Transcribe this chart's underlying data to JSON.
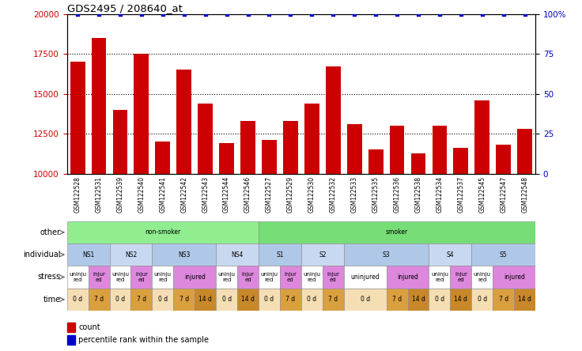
{
  "title": "GDS2495 / 208640_at",
  "samples": [
    "GSM122528",
    "GSM122531",
    "GSM122539",
    "GSM122540",
    "GSM122541",
    "GSM122542",
    "GSM122543",
    "GSM122544",
    "GSM122546",
    "GSM122527",
    "GSM122529",
    "GSM122530",
    "GSM122532",
    "GSM122533",
    "GSM122535",
    "GSM122536",
    "GSM122538",
    "GSM122534",
    "GSM122537",
    "GSM122545",
    "GSM122547",
    "GSM122548"
  ],
  "counts": [
    17000,
    18500,
    14000,
    17500,
    12000,
    16500,
    14400,
    11900,
    13300,
    12100,
    13300,
    14400,
    16700,
    13100,
    11500,
    13000,
    11300,
    13000,
    11600,
    14600,
    11800,
    12800
  ],
  "percentile": [
    100,
    100,
    100,
    100,
    100,
    100,
    100,
    100,
    100,
    100,
    100,
    100,
    100,
    100,
    100,
    100,
    100,
    100,
    100,
    100,
    100,
    100
  ],
  "ylim_left": [
    10000,
    20000
  ],
  "ylim_right": [
    0,
    100
  ],
  "yticks_left": [
    10000,
    12500,
    15000,
    17500,
    20000
  ],
  "yticks_right": [
    0,
    25,
    50,
    75,
    100
  ],
  "bar_color": "#cc0000",
  "dot_color": "#0000cc",
  "other_row": [
    {
      "label": "non-smoker",
      "start": 0,
      "end": 9,
      "color": "#90ee90"
    },
    {
      "label": "smoker",
      "start": 9,
      "end": 22,
      "color": "#77dd77"
    }
  ],
  "individual_row": [
    {
      "label": "NS1",
      "start": 0,
      "end": 2,
      "color": "#b0c8e8"
    },
    {
      "label": "NS2",
      "start": 2,
      "end": 4,
      "color": "#c8d8f0"
    },
    {
      "label": "NS3",
      "start": 4,
      "end": 7,
      "color": "#b0c8e8"
    },
    {
      "label": "NS4",
      "start": 7,
      "end": 9,
      "color": "#c8d8f0"
    },
    {
      "label": "S1",
      "start": 9,
      "end": 11,
      "color": "#b0c8e8"
    },
    {
      "label": "S2",
      "start": 11,
      "end": 13,
      "color": "#c8d8f0"
    },
    {
      "label": "S3",
      "start": 13,
      "end": 17,
      "color": "#b0c8e8"
    },
    {
      "label": "S4",
      "start": 17,
      "end": 19,
      "color": "#c8d8f0"
    },
    {
      "label": "S5",
      "start": 19,
      "end": 22,
      "color": "#b0c8e8"
    }
  ],
  "stress_row": [
    {
      "label": "uninju\nred",
      "start": 0,
      "end": 1,
      "color": "#ffffff"
    },
    {
      "label": "injur\ned",
      "start": 1,
      "end": 2,
      "color": "#dd88dd"
    },
    {
      "label": "uninju\nred",
      "start": 2,
      "end": 3,
      "color": "#ffffff"
    },
    {
      "label": "injur\ned",
      "start": 3,
      "end": 4,
      "color": "#dd88dd"
    },
    {
      "label": "uninju\nred",
      "start": 4,
      "end": 5,
      "color": "#ffffff"
    },
    {
      "label": "injured",
      "start": 5,
      "end": 7,
      "color": "#dd88dd"
    },
    {
      "label": "uninju\nred",
      "start": 7,
      "end": 8,
      "color": "#ffffff"
    },
    {
      "label": "injur\ned",
      "start": 8,
      "end": 9,
      "color": "#dd88dd"
    },
    {
      "label": "uninju\nred",
      "start": 9,
      "end": 10,
      "color": "#ffffff"
    },
    {
      "label": "injur\ned",
      "start": 10,
      "end": 11,
      "color": "#dd88dd"
    },
    {
      "label": "uninju\nred",
      "start": 11,
      "end": 12,
      "color": "#ffffff"
    },
    {
      "label": "injur\ned",
      "start": 12,
      "end": 13,
      "color": "#dd88dd"
    },
    {
      "label": "uninjured",
      "start": 13,
      "end": 15,
      "color": "#ffffff"
    },
    {
      "label": "injured",
      "start": 15,
      "end": 17,
      "color": "#dd88dd"
    },
    {
      "label": "uninju\nred",
      "start": 17,
      "end": 18,
      "color": "#ffffff"
    },
    {
      "label": "injur\ned",
      "start": 18,
      "end": 19,
      "color": "#dd88dd"
    },
    {
      "label": "uninju\nred",
      "start": 19,
      "end": 20,
      "color": "#ffffff"
    },
    {
      "label": "injured",
      "start": 20,
      "end": 22,
      "color": "#dd88dd"
    }
  ],
  "time_row": [
    {
      "label": "0 d",
      "start": 0,
      "end": 1,
      "color": "#f5deb3"
    },
    {
      "label": "7 d",
      "start": 1,
      "end": 2,
      "color": "#daa040"
    },
    {
      "label": "0 d",
      "start": 2,
      "end": 3,
      "color": "#f5deb3"
    },
    {
      "label": "7 d",
      "start": 3,
      "end": 4,
      "color": "#daa040"
    },
    {
      "label": "0 d",
      "start": 4,
      "end": 5,
      "color": "#f5deb3"
    },
    {
      "label": "7 d",
      "start": 5,
      "end": 6,
      "color": "#daa040"
    },
    {
      "label": "14 d",
      "start": 6,
      "end": 7,
      "color": "#c8882a"
    },
    {
      "label": "0 d",
      "start": 7,
      "end": 8,
      "color": "#f5deb3"
    },
    {
      "label": "14 d",
      "start": 8,
      "end": 9,
      "color": "#c8882a"
    },
    {
      "label": "0 d",
      "start": 9,
      "end": 10,
      "color": "#f5deb3"
    },
    {
      "label": "7 d",
      "start": 10,
      "end": 11,
      "color": "#daa040"
    },
    {
      "label": "0 d",
      "start": 11,
      "end": 12,
      "color": "#f5deb3"
    },
    {
      "label": "7 d",
      "start": 12,
      "end": 13,
      "color": "#daa040"
    },
    {
      "label": "0 d",
      "start": 13,
      "end": 15,
      "color": "#f5deb3"
    },
    {
      "label": "7 d",
      "start": 15,
      "end": 16,
      "color": "#daa040"
    },
    {
      "label": "14 d",
      "start": 16,
      "end": 17,
      "color": "#c8882a"
    },
    {
      "label": "0 d",
      "start": 17,
      "end": 18,
      "color": "#f5deb3"
    },
    {
      "label": "14 d",
      "start": 18,
      "end": 19,
      "color": "#c8882a"
    },
    {
      "label": "0 d",
      "start": 19,
      "end": 20,
      "color": "#f5deb3"
    },
    {
      "label": "7 d",
      "start": 20,
      "end": 21,
      "color": "#daa040"
    },
    {
      "label": "14 d",
      "start": 21,
      "end": 22,
      "color": "#c8882a"
    }
  ],
  "row_labels": [
    "other",
    "individual",
    "stress",
    "time"
  ],
  "tick_color_left": "#cc0000",
  "tick_color_right": "#0000cc",
  "xticklabel_bg": "#d8d8d8"
}
